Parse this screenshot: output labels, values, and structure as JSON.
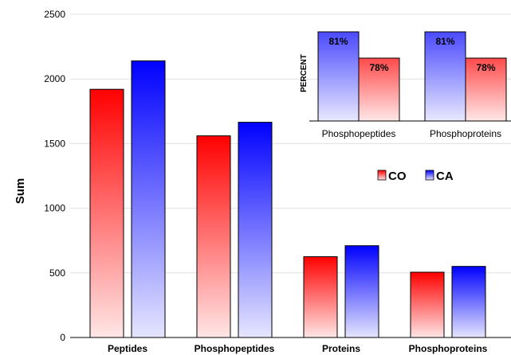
{
  "colors": {
    "co_dark": "#ff0000",
    "co_light": "#ffe6e6",
    "ca_dark": "#0000ff",
    "ca_light": "#e6e6ff",
    "grid": "#e0e0e0"
  },
  "chart_data": [
    {
      "type": "bar",
      "title": "",
      "xlabel": "",
      "ylabel": "Sum",
      "ylim": [
        0,
        2500
      ],
      "yticks": [
        "0",
        "500",
        "1000",
        "1500",
        "2000",
        "2500"
      ],
      "grid": true,
      "categories": [
        "Peptides",
        "Phosphopeptides",
        "Proteins",
        "Phosphoproteins"
      ],
      "series": [
        {
          "name": "CO",
          "values": [
            1920,
            1560,
            625,
            505
          ]
        },
        {
          "name": "CA",
          "values": [
            2140,
            1665,
            710,
            550
          ]
        }
      ],
      "legend": {
        "placement": "right",
        "entries": [
          "CO",
          "CA"
        ]
      }
    },
    {
      "type": "bar",
      "title": "",
      "xlabel": "",
      "ylabel": "PERCENT",
      "ylim": [
        0,
        100
      ],
      "categories": [
        "Phosphopeptides",
        "Phosphoproteins"
      ],
      "series": [
        {
          "name": "CA",
          "values": [
            81,
            81
          ],
          "labels": [
            "81%",
            "81%"
          ]
        },
        {
          "name": "CO",
          "values": [
            78,
            78
          ],
          "labels": [
            "78%",
            "78%"
          ]
        }
      ]
    }
  ]
}
